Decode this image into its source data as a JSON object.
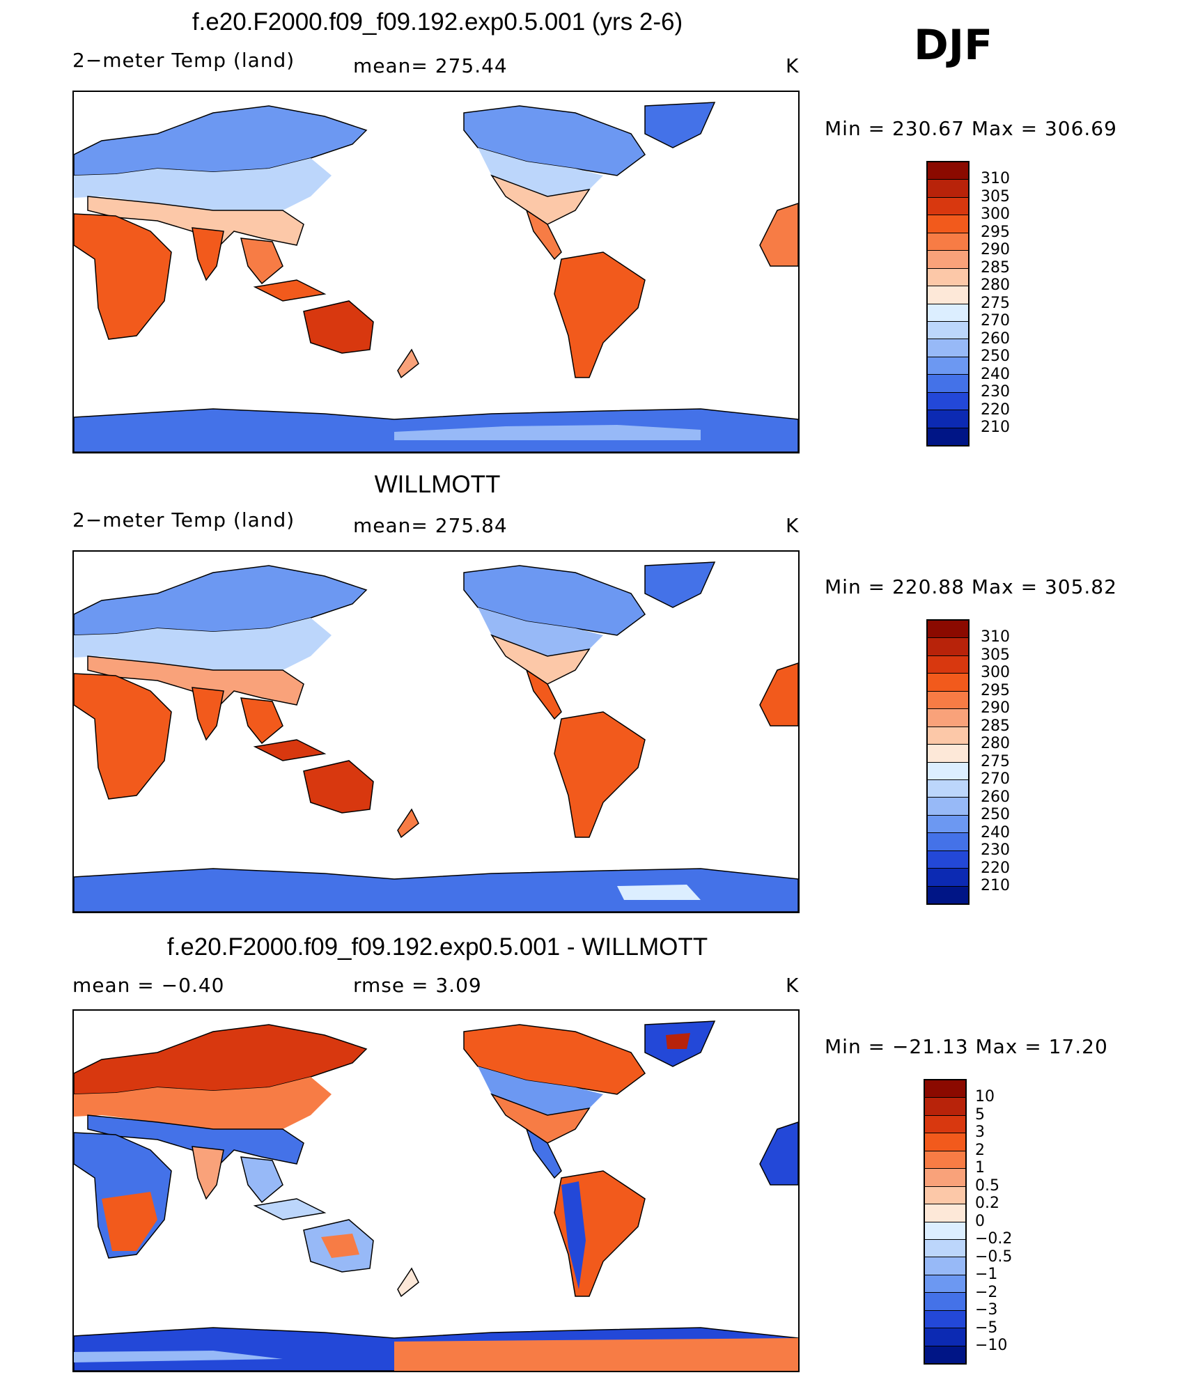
{
  "season": "DJF",
  "panels": [
    {
      "title": "f.e20.F2000.f09_f09.192.exp0.5.001 (yrs 2-6)",
      "left_label": "2−meter Temp (land)",
      "center_label": "mean= 275.44",
      "units": "K",
      "min_max": "Min = 230.67 Max = 306.69",
      "colorbar_labels": [
        "310",
        "305",
        "300",
        "295",
        "290",
        "285",
        "280",
        "275",
        "270",
        "260",
        "250",
        "240",
        "230",
        "220",
        "210"
      ],
      "colors": [
        "#8b0a00",
        "#b8230a",
        "#d8380f",
        "#f25a1c",
        "#f77c45",
        "#f9a27a",
        "#fcc8a8",
        "#fde8d8",
        "#dceeff",
        "#bcd6fb",
        "#97b9f7",
        "#6c98f2",
        "#4472e8",
        "#2348d8",
        "#0c2ab3",
        "#001586"
      ]
    },
    {
      "title": "WILLMOTT",
      "left_label": "2−meter Temp (land)",
      "center_label": "mean= 275.84",
      "units": "K",
      "min_max": "Min = 220.88 Max = 305.82",
      "colorbar_labels": [
        "310",
        "305",
        "300",
        "295",
        "290",
        "285",
        "280",
        "275",
        "270",
        "260",
        "250",
        "240",
        "230",
        "220",
        "210"
      ],
      "colors": [
        "#8b0a00",
        "#b8230a",
        "#d8380f",
        "#f25a1c",
        "#f77c45",
        "#f9a27a",
        "#fcc8a8",
        "#fde8d8",
        "#dceeff",
        "#bcd6fb",
        "#97b9f7",
        "#6c98f2",
        "#4472e8",
        "#2348d8",
        "#0c2ab3",
        "#001586"
      ]
    },
    {
      "title": "f.e20.F2000.f09_f09.192.exp0.5.001 - WILLMOTT",
      "left_label": "mean = −0.40",
      "center_label": "rmse = 3.09",
      "units": "K",
      "min_max": "Min = −21.13 Max = 17.20",
      "colorbar_labels": [
        "10",
        "5",
        "3",
        "2",
        "1",
        "0.5",
        "0.2",
        "0",
        "−0.2",
        "−0.5",
        "−1",
        "−2",
        "−3",
        "−5",
        "−10"
      ],
      "colors": [
        "#8b0a00",
        "#b8230a",
        "#d8380f",
        "#f25a1c",
        "#f77c45",
        "#f9a27a",
        "#fcc8a8",
        "#fde8d8",
        "#dceeff",
        "#bcd6fb",
        "#97b9f7",
        "#6c98f2",
        "#4472e8",
        "#2348d8",
        "#0c2ab3",
        "#001586"
      ]
    }
  ]
}
